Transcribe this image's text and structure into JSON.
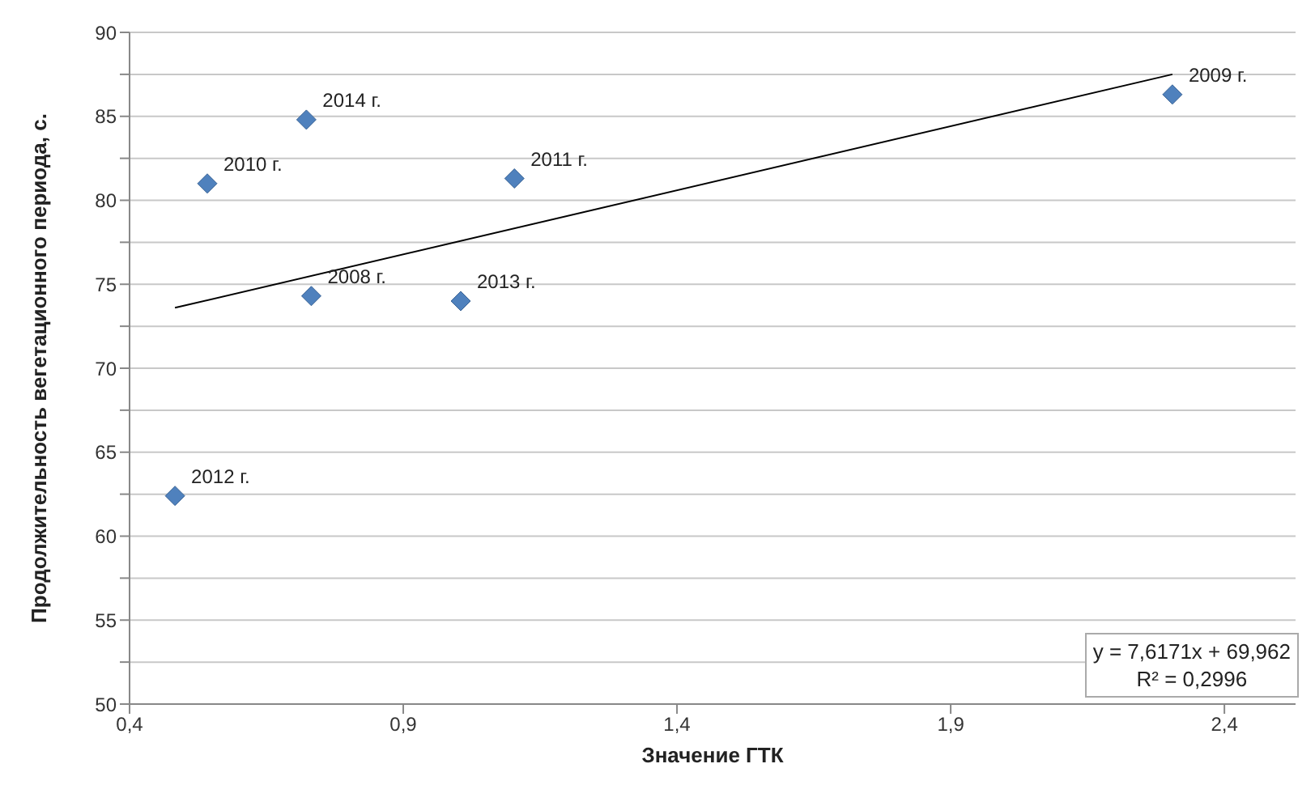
{
  "chart_data": {
    "type": "scatter",
    "xlabel": "Значение ГТК",
    "ylabel": "Продолжительность вегетационного периода, с.",
    "x": [
      0.732,
      2.305,
      0.542,
      1.103,
      0.483,
      1.005,
      0.723
    ],
    "series": [
      {
        "color": "#4f81bd",
        "marker": "diamond",
        "values": [
          74.3,
          86.3,
          81.0,
          81.3,
          62.4,
          74.0,
          84.8
        ]
      },
      {
        "type": "line",
        "color": "#000000",
        "x": [
          0.483,
          2.305
        ],
        "values": [
          73.6,
          87.5
        ],
        "marker": "none"
      }
    ],
    "xlim": [
      0.4,
      2.53
    ],
    "xticks": [
      {
        "value": 0.4,
        "label": "0,4"
      },
      {
        "value": 0.9,
        "label": "0,9"
      },
      {
        "value": 1.4,
        "label": "1,4"
      },
      {
        "value": 1.9,
        "label": "1,9"
      },
      {
        "value": 2.4,
        "label": "2,4"
      }
    ],
    "ylim": [
      50,
      90
    ],
    "yticks": [
      50,
      {
        "value": 52.5,
        "label": null
      },
      55,
      {
        "value": 57.5,
        "label": null
      },
      60,
      {
        "value": 62.5,
        "label": null
      },
      65,
      {
        "value": 67.5,
        "label": null
      },
      70,
      {
        "value": 72.5,
        "label": null
      },
      75,
      {
        "value": 77.5,
        "label": null
      },
      80,
      {
        "value": 82.5,
        "label": null
      },
      85,
      {
        "value": 87.5,
        "label": null
      },
      90
    ],
    "grid": "y",
    "legend": false,
    "annotations": [
      {
        "text": "2008 г.",
        "x": 0.732,
        "y": 74.3
      },
      {
        "text": "2009 г.",
        "x": 2.305,
        "y": 86.3
      },
      {
        "text": "2010 г.",
        "x": 0.542,
        "y": 81.0
      },
      {
        "text": "2011 г.",
        "x": 1.103,
        "y": 81.3
      },
      {
        "text": "2012 г.",
        "x": 0.483,
        "y": 62.4
      },
      {
        "text": "2013 г.",
        "x": 1.005,
        "y": 74.0
      },
      {
        "text": "2014 г.",
        "x": 0.723,
        "y": 84.8
      },
      "y = 7,6171x + 69,962",
      "R² = 0,2996"
    ]
  }
}
